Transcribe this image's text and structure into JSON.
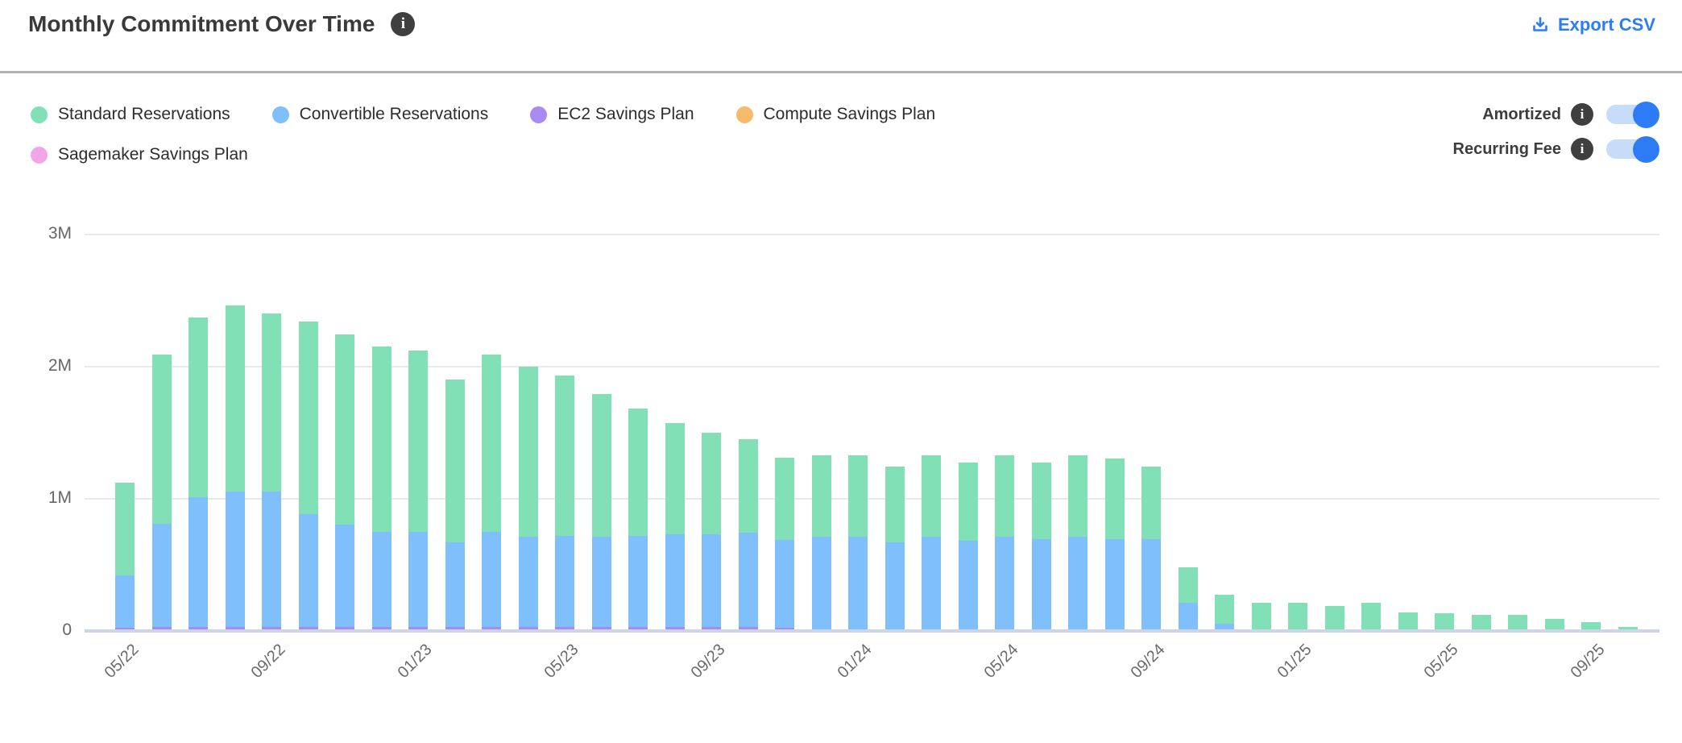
{
  "header": {
    "title": "Monthly Commitment Over Time",
    "export_label": "Export CSV"
  },
  "legend": {
    "items": [
      {
        "label": "Standard Reservations",
        "color": "#82e0b6"
      },
      {
        "label": "Convertible Reservations",
        "color": "#7ebffc"
      },
      {
        "label": "EC2 Savings Plan",
        "color": "#a78bf0"
      },
      {
        "label": "Compute Savings Plan",
        "color": "#f6ba6b"
      },
      {
        "label": "Sagemaker Savings Plan",
        "color": "#f0a7e8"
      }
    ]
  },
  "toggles": [
    {
      "label": "Amortized",
      "state": "on"
    },
    {
      "label": "Recurring Fee",
      "state": "on"
    }
  ],
  "colors": {
    "accent_blue": "#2e7cf5",
    "toggle_track": "#c6dcf9",
    "divider": "#b2b2b2",
    "gridline": "#e9e9e9",
    "axis_line": "#cdd6e9"
  },
  "chart_data": {
    "type": "bar",
    "stacked": true,
    "unit": "M",
    "ylim": [
      0,
      3
    ],
    "grid": true,
    "legend_position": "top-left",
    "y_ticks": [
      {
        "label": "3M",
        "value": 3
      },
      {
        "label": "2M",
        "value": 2
      },
      {
        "label": "1M",
        "value": 1
      },
      {
        "label": "0",
        "value": 0
      }
    ],
    "categories": [
      "05/22",
      "06/22",
      "07/22",
      "08/22",
      "09/22",
      "10/22",
      "11/22",
      "12/22",
      "01/23",
      "02/23",
      "03/23",
      "04/23",
      "05/23",
      "06/23",
      "07/23",
      "08/23",
      "09/23",
      "10/23",
      "11/23",
      "12/23",
      "01/24",
      "02/24",
      "03/24",
      "04/24",
      "05/24",
      "06/24",
      "07/24",
      "08/24",
      "09/24",
      "10/24",
      "11/24",
      "12/24",
      "01/25",
      "02/25",
      "03/25",
      "04/25",
      "05/25",
      "06/25",
      "07/25",
      "08/25",
      "09/25",
      "10/25"
    ],
    "x_tick_labels": [
      "05/22",
      "09/22",
      "01/23",
      "05/23",
      "09/23",
      "01/24",
      "05/24",
      "09/24",
      "01/25",
      "05/25",
      "09/25"
    ],
    "series": [
      {
        "name": "EC2 Savings Plan",
        "color": "#a78bf0",
        "values": [
          0.01,
          0.02,
          0.02,
          0.02,
          0.02,
          0.02,
          0.02,
          0.02,
          0.02,
          0.02,
          0.02,
          0.02,
          0.02,
          0.02,
          0.02,
          0.02,
          0.02,
          0.02,
          0.01,
          0,
          0,
          0,
          0,
          0,
          0,
          0,
          0,
          0,
          0,
          0,
          0,
          0,
          0,
          0,
          0,
          0,
          0,
          0,
          0,
          0,
          0,
          0
        ]
      },
      {
        "name": "Convertible Reservations",
        "color": "#7ebffc",
        "values": [
          0.4,
          0.78,
          0.98,
          1.02,
          1.02,
          0.85,
          0.77,
          0.72,
          0.72,
          0.64,
          0.72,
          0.68,
          0.69,
          0.68,
          0.69,
          0.7,
          0.7,
          0.71,
          0.67,
          0.7,
          0.7,
          0.66,
          0.7,
          0.67,
          0.7,
          0.68,
          0.7,
          0.68,
          0.68,
          0.2,
          0.04,
          0,
          0,
          0,
          0,
          0,
          0,
          0,
          0,
          0,
          0,
          0
        ]
      },
      {
        "name": "Standard Reservations",
        "color": "#82e0b6",
        "values": [
          0.7,
          1.28,
          1.36,
          1.41,
          1.35,
          1.46,
          1.44,
          1.4,
          1.37,
          1.23,
          1.34,
          1.29,
          1.21,
          1.08,
          0.96,
          0.84,
          0.77,
          0.71,
          0.62,
          0.62,
          0.62,
          0.57,
          0.62,
          0.59,
          0.62,
          0.58,
          0.62,
          0.61,
          0.55,
          0.27,
          0.22,
          0.2,
          0.2,
          0.175,
          0.2,
          0.13,
          0.12,
          0.11,
          0.11,
          0.08,
          0.055,
          0.02
        ]
      },
      {
        "name": "Compute Savings Plan",
        "color": "#f6ba6b",
        "values": [
          0,
          0,
          0,
          0,
          0,
          0,
          0,
          0,
          0,
          0,
          0,
          0,
          0,
          0,
          0,
          0,
          0,
          0,
          0,
          0,
          0,
          0,
          0,
          0,
          0,
          0,
          0,
          0,
          0,
          0,
          0,
          0,
          0,
          0,
          0,
          0,
          0,
          0,
          0,
          0,
          0,
          0
        ]
      },
      {
        "name": "Sagemaker Savings Plan",
        "color": "#f0a7e8",
        "values": [
          0,
          0,
          0,
          0,
          0,
          0,
          0,
          0,
          0,
          0,
          0,
          0,
          0,
          0,
          0,
          0,
          0,
          0,
          0,
          0,
          0,
          0,
          0,
          0,
          0,
          0,
          0,
          0,
          0,
          0,
          0,
          0,
          0,
          0,
          0,
          0,
          0,
          0,
          0,
          0,
          0,
          0
        ]
      }
    ]
  }
}
